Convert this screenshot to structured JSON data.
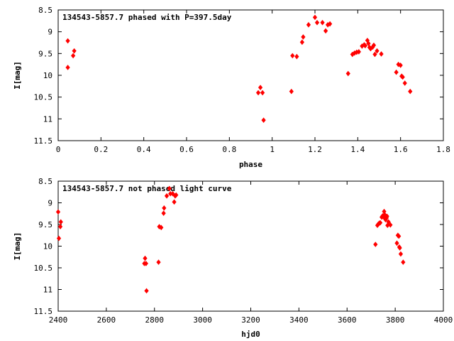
{
  "chart_data": [
    {
      "type": "scatter",
      "title": "134543-5857.7 phased with P=397.5day",
      "xlabel": "phase",
      "ylabel": "I[mag]",
      "xlim": [
        0,
        1.8
      ],
      "ylim": [
        8.5,
        11.5
      ],
      "y_inverted": true,
      "xticks": [
        0,
        0.2,
        0.4,
        0.6,
        0.8,
        1,
        1.2,
        1.4,
        1.6,
        1.8
      ],
      "xtick_labels": [
        "0",
        "0.2",
        "0.4",
        "0.6",
        "0.8",
        "1",
        "1.2",
        "1.4",
        "1.6",
        "1.8"
      ],
      "yticks": [
        8.5,
        9,
        9.5,
        10,
        10.5,
        11,
        11.5
      ],
      "ytick_labels": [
        "8.5",
        "9",
        "9.5",
        "10",
        "10.5",
        "11",
        "11.5"
      ],
      "marker_color": "#ff0000",
      "points": [
        [
          0.045,
          9.21
        ],
        [
          0.045,
          9.82
        ],
        [
          0.07,
          9.55
        ],
        [
          0.075,
          9.44
        ],
        [
          0.935,
          10.4
        ],
        [
          0.945,
          10.28
        ],
        [
          0.955,
          10.4
        ],
        [
          0.96,
          11.03
        ],
        [
          1.09,
          10.37
        ],
        [
          1.095,
          9.55
        ],
        [
          1.115,
          9.57
        ],
        [
          1.14,
          9.24
        ],
        [
          1.145,
          9.12
        ],
        [
          1.17,
          8.84
        ],
        [
          1.2,
          8.67
        ],
        [
          1.21,
          8.79
        ],
        [
          1.235,
          8.79
        ],
        [
          1.25,
          8.98
        ],
        [
          1.26,
          8.84
        ],
        [
          1.27,
          8.82
        ],
        [
          1.355,
          9.96
        ],
        [
          1.375,
          9.52
        ],
        [
          1.385,
          9.49
        ],
        [
          1.395,
          9.47
        ],
        [
          1.405,
          9.46
        ],
        [
          1.42,
          9.33
        ],
        [
          1.43,
          9.3
        ],
        [
          1.435,
          9.32
        ],
        [
          1.445,
          9.2
        ],
        [
          1.45,
          9.27
        ],
        [
          1.455,
          9.36
        ],
        [
          1.46,
          9.39
        ],
        [
          1.47,
          9.35
        ],
        [
          1.475,
          9.31
        ],
        [
          1.48,
          9.52
        ],
        [
          1.49,
          9.44
        ],
        [
          1.51,
          9.51
        ],
        [
          1.58,
          9.93
        ],
        [
          1.59,
          9.75
        ],
        [
          1.6,
          9.77
        ],
        [
          1.605,
          10.02
        ],
        [
          1.61,
          10.04
        ],
        [
          1.62,
          10.18
        ],
        [
          1.645,
          10.37
        ]
      ]
    },
    {
      "type": "scatter",
      "title": "134543-5857.7 not phased light curve",
      "xlabel": "hjd0",
      "ylabel": "I[mag]",
      "xlim": [
        2400,
        4000
      ],
      "ylim": [
        8.5,
        11.5
      ],
      "y_inverted": true,
      "xticks": [
        2400,
        2600,
        2800,
        3000,
        3200,
        3400,
        3600,
        3800,
        4000
      ],
      "xtick_labels": [
        "2400",
        "2600",
        "2800",
        "3000",
        "3200",
        "3400",
        "3600",
        "3800",
        "4000"
      ],
      "yticks": [
        8.5,
        9,
        9.5,
        10,
        10.5,
        11,
        11.5
      ],
      "ytick_labels": [
        "8.5",
        "9",
        "9.5",
        "10",
        "10.5",
        "11",
        "11.5"
      ],
      "marker_color": "#ff0000",
      "points": [
        [
          2400,
          9.21
        ],
        [
          2403,
          9.82
        ],
        [
          2409,
          9.55
        ],
        [
          2411,
          9.44
        ],
        [
          2758,
          10.4
        ],
        [
          2761,
          10.28
        ],
        [
          2765,
          10.4
        ],
        [
          2767,
          11.03
        ],
        [
          2817,
          10.37
        ],
        [
          2820,
          9.55
        ],
        [
          2828,
          9.57
        ],
        [
          2838,
          9.24
        ],
        [
          2840,
          9.12
        ],
        [
          2851,
          8.84
        ],
        [
          2862,
          8.67
        ],
        [
          2866,
          8.79
        ],
        [
          2876,
          8.79
        ],
        [
          2882,
          8.98
        ],
        [
          2886,
          8.84
        ],
        [
          2890,
          8.82
        ],
        [
          3718,
          9.96
        ],
        [
          3726,
          9.52
        ],
        [
          3730,
          9.49
        ],
        [
          3734,
          9.47
        ],
        [
          3738,
          9.46
        ],
        [
          3744,
          9.33
        ],
        [
          3748,
          9.3
        ],
        [
          3750,
          9.32
        ],
        [
          3754,
          9.2
        ],
        [
          3756,
          9.27
        ],
        [
          3758,
          9.36
        ],
        [
          3760,
          9.39
        ],
        [
          3764,
          9.35
        ],
        [
          3766,
          9.31
        ],
        [
          3768,
          9.52
        ],
        [
          3772,
          9.44
        ],
        [
          3780,
          9.51
        ],
        [
          3807,
          9.93
        ],
        [
          3811,
          9.75
        ],
        [
          3815,
          9.77
        ],
        [
          3817,
          10.02
        ],
        [
          3819,
          10.04
        ],
        [
          3823,
          10.18
        ],
        [
          3833,
          10.37
        ]
      ]
    }
  ]
}
